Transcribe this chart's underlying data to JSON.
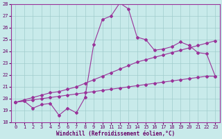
{
  "xlabel": "Windchill (Refroidissement éolien,°C)",
  "xlim_min": -0.5,
  "xlim_max": 23.5,
  "ylim_min": 18,
  "ylim_max": 28,
  "yticks": [
    18,
    19,
    20,
    21,
    22,
    23,
    24,
    25,
    26,
    27,
    28
  ],
  "xticks": [
    0,
    1,
    2,
    3,
    4,
    5,
    6,
    7,
    8,
    9,
    10,
    11,
    12,
    13,
    14,
    15,
    16,
    17,
    18,
    19,
    20,
    21,
    22,
    23
  ],
  "bg_color": "#c8eaea",
  "line_color": "#993399",
  "grid_color": "#a0cccc",
  "line1_x": [
    0,
    1,
    2,
    3,
    4,
    5,
    6,
    7,
    8,
    9,
    10,
    11,
    12,
    13,
    14,
    15,
    16,
    17,
    18,
    19,
    20,
    21,
    22,
    23
  ],
  "line1_y": [
    19.7,
    19.8,
    19.2,
    19.5,
    19.6,
    18.6,
    19.2,
    18.8,
    20.1,
    24.6,
    26.7,
    27.0,
    28.1,
    27.6,
    25.2,
    25.0,
    24.1,
    24.2,
    24.4,
    24.8,
    24.5,
    23.9,
    23.8,
    21.9
  ],
  "line2_x": [
    0,
    1,
    2,
    3,
    4,
    5,
    6,
    7,
    8,
    9,
    10,
    11,
    12,
    13,
    14,
    15,
    16,
    17,
    18,
    19,
    20,
    21,
    22,
    23
  ],
  "line2_y": [
    19.7,
    19.9,
    20.1,
    20.3,
    20.5,
    20.6,
    20.8,
    21.0,
    21.3,
    21.6,
    21.9,
    22.2,
    22.5,
    22.8,
    23.1,
    23.3,
    23.5,
    23.7,
    23.9,
    24.1,
    24.3,
    24.5,
    24.7,
    24.9
  ],
  "line3_x": [
    0,
    1,
    2,
    3,
    4,
    5,
    6,
    7,
    8,
    9,
    10,
    11,
    12,
    13,
    14,
    15,
    16,
    17,
    18,
    19,
    20,
    21,
    22,
    23
  ],
  "line3_y": [
    19.7,
    19.8,
    19.9,
    20.0,
    20.1,
    20.2,
    20.3,
    20.4,
    20.5,
    20.6,
    20.7,
    20.8,
    20.9,
    21.0,
    21.1,
    21.2,
    21.3,
    21.4,
    21.5,
    21.6,
    21.7,
    21.8,
    21.9,
    21.9
  ]
}
